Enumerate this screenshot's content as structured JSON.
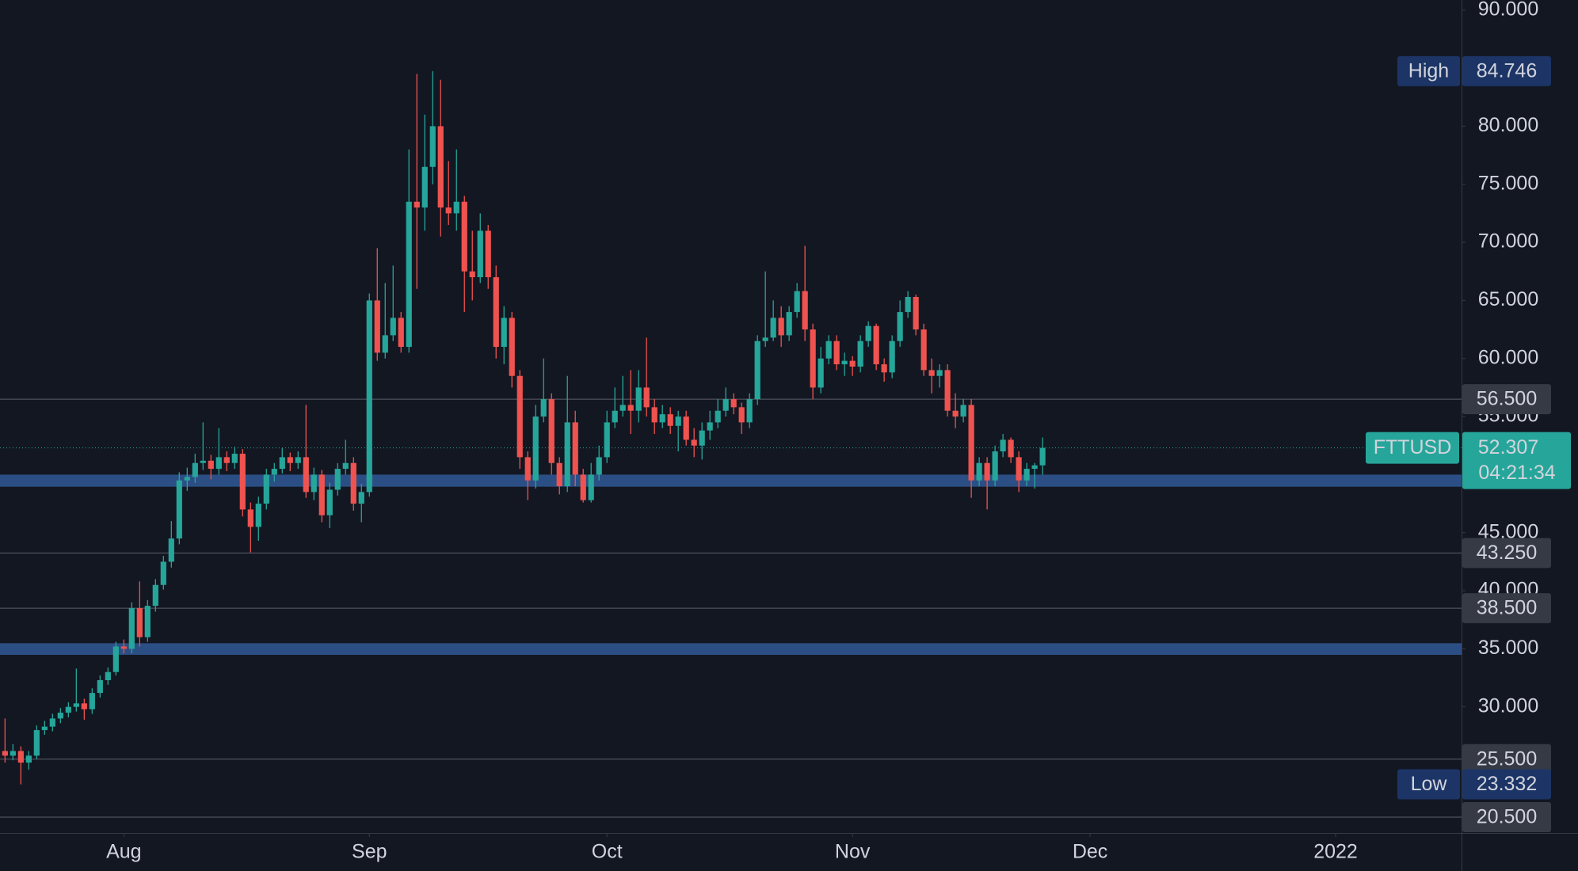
{
  "chart_data": {
    "type": "candlestick",
    "symbol": "FTTUSD",
    "countdown": "04:21:34",
    "up_color": "#26a69a",
    "down_color": "#ef5350",
    "zone_color": "#2b4f85",
    "level_color": "#5d606b",
    "open": [
      26.2,
      25.8,
      26.2,
      25.2,
      25.8,
      28.0,
      28.3,
      29.0,
      29.5,
      30.0,
      30.3,
      29.8,
      31.2,
      32.3,
      33.0,
      35.2,
      35.0,
      38.5,
      36.0,
      38.7,
      40.5,
      42.5,
      44.5,
      49.5,
      49.8,
      51.0,
      51.2,
      50.5,
      51.5,
      51.0,
      51.8,
      47.0,
      45.5,
      47.5,
      50.0,
      50.5,
      51.5,
      51.0,
      51.5,
      48.5,
      50.0,
      46.5,
      48.7,
      50.5,
      51.0,
      47.5,
      48.5,
      65.0,
      60.5,
      62.0,
      63.5,
      61.0,
      73.5,
      73.0,
      76.5,
      80.0,
      73.0,
      72.5,
      73.5,
      67.5,
      67.0,
      71.0,
      67.0,
      61.0,
      63.5,
      58.5,
      51.5,
      49.5,
      55.0,
      56.5,
      51.0,
      49.0,
      54.5,
      50.0,
      47.8,
      50.0,
      51.5,
      54.5,
      55.5,
      56.0,
      55.5,
      57.5,
      55.8,
      54.5,
      55.2,
      54.2,
      55.0,
      53.0,
      52.5,
      53.8,
      54.5,
      55.5,
      56.5,
      55.8,
      54.5,
      56.5,
      61.5,
      61.8,
      63.5,
      62.0,
      64.0,
      65.8,
      62.5,
      57.5,
      60.0,
      61.5,
      59.5,
      59.8,
      59.3,
      61.5,
      62.8,
      59.5,
      58.8,
      61.5,
      64.0,
      65.3,
      62.5,
      59.0,
      58.5,
      59.0,
      55.5,
      55.0,
      56.0,
      49.5,
      51.0,
      49.5,
      52.0,
      53.0,
      51.5,
      49.5,
      50.5,
      50.8
    ],
    "high": [
      29.0,
      26.8,
      26.6,
      26.2,
      28.4,
      28.8,
      29.4,
      29.9,
      30.4,
      33.3,
      30.7,
      31.6,
      32.7,
      33.4,
      35.6,
      35.8,
      39.0,
      40.8,
      39.2,
      41.0,
      43.0,
      46.0,
      50.2,
      50.6,
      51.8,
      54.5,
      51.7,
      54.0,
      52.0,
      52.4,
      52.2,
      47.6,
      48.1,
      50.5,
      51.0,
      52.3,
      51.9,
      52.0,
      56.0,
      50.6,
      50.4,
      49.3,
      51.0,
      53.0,
      51.5,
      49.2,
      65.6,
      69.5,
      66.5,
      68.0,
      64.0,
      78.0,
      84.5,
      81.0,
      84.746,
      84.0,
      77.0,
      78.0,
      74.0,
      71.0,
      72.5,
      71.5,
      68.0,
      64.5,
      64.0,
      59.0,
      52.0,
      56.0,
      60.0,
      57.0,
      51.5,
      58.5,
      55.5,
      50.5,
      51.0,
      52.5,
      55.5,
      57.5,
      58.5,
      59.0,
      59.0,
      61.8,
      56.5,
      56.0,
      55.8,
      55.5,
      55.5,
      54.0,
      54.5,
      55.5,
      56.5,
      57.5,
      57.0,
      56.2,
      57.0,
      62.0,
      67.5,
      65.0,
      64.5,
      64.5,
      66.5,
      69.7,
      63.0,
      61.0,
      62.0,
      62.0,
      60.5,
      60.2,
      62.0,
      63.2,
      63.0,
      60.0,
      62.0,
      65.0,
      65.8,
      65.5,
      63.0,
      60.0,
      59.5,
      59.5,
      57.0,
      56.5,
      56.5,
      51.5,
      51.5,
      52.5,
      53.5,
      53.2,
      52.0,
      51.0,
      51.0,
      53.2
    ],
    "low": [
      25.2,
      25.4,
      23.332,
      24.6,
      25.5,
      27.6,
      27.9,
      28.6,
      29.1,
      29.6,
      28.9,
      29.4,
      30.8,
      31.9,
      32.7,
      34.6,
      34.6,
      35.2,
      35.6,
      38.2,
      40.1,
      42.0,
      44.0,
      48.6,
      49.3,
      50.4,
      49.6,
      50.0,
      50.3,
      50.5,
      46.4,
      43.3,
      44.3,
      47.0,
      49.4,
      50.1,
      50.3,
      50.5,
      48.0,
      47.8,
      45.9,
      45.4,
      48.2,
      50.0,
      46.9,
      45.9,
      48.1,
      59.8,
      60.0,
      61.5,
      60.5,
      60.5,
      66.0,
      71.0,
      75.0,
      70.5,
      71.5,
      71.0,
      64.0,
      65.0,
      66.5,
      66.0,
      60.0,
      59.5,
      57.5,
      50.5,
      47.8,
      48.8,
      54.5,
      50.0,
      48.3,
      48.5,
      49.0,
      47.6,
      47.6,
      49.5,
      51.0,
      54.0,
      55.0,
      53.5,
      54.5,
      55.0,
      53.5,
      54.0,
      53.5,
      52.0,
      52.5,
      51.5,
      51.3,
      53.0,
      54.0,
      55.0,
      55.2,
      53.5,
      54.0,
      56.0,
      61.0,
      61.5,
      61.0,
      61.5,
      63.5,
      61.5,
      56.5,
      57.0,
      59.5,
      59.0,
      58.5,
      58.5,
      58.8,
      61.0,
      59.0,
      58.0,
      58.3,
      61.0,
      63.5,
      62.0,
      58.5,
      57.0,
      57.5,
      55.0,
      54.0,
      54.5,
      48.0,
      49.0,
      47.0,
      49.0,
      51.5,
      51.0,
      48.5,
      49.0,
      48.8,
      50.0
    ],
    "close": [
      25.8,
      26.2,
      25.2,
      25.8,
      28.0,
      28.3,
      29.0,
      29.5,
      30.0,
      30.3,
      29.8,
      31.2,
      32.3,
      33.0,
      35.2,
      35.0,
      38.5,
      36.0,
      38.7,
      40.5,
      42.5,
      44.5,
      49.5,
      49.8,
      51.0,
      51.2,
      50.5,
      51.5,
      51.0,
      51.8,
      47.0,
      45.5,
      47.5,
      50.0,
      50.5,
      51.5,
      51.0,
      51.5,
      48.5,
      50.0,
      46.5,
      48.7,
      50.5,
      51.0,
      47.5,
      48.5,
      65.0,
      60.5,
      62.0,
      63.5,
      61.0,
      73.5,
      73.0,
      76.5,
      80.0,
      73.0,
      72.5,
      73.5,
      67.5,
      67.0,
      71.0,
      67.0,
      61.0,
      63.5,
      58.5,
      51.5,
      49.5,
      55.0,
      56.5,
      51.0,
      49.0,
      54.5,
      50.0,
      47.8,
      50.0,
      51.5,
      54.5,
      55.5,
      56.0,
      55.5,
      57.5,
      55.8,
      54.5,
      55.2,
      54.2,
      55.0,
      53.0,
      52.5,
      53.8,
      54.5,
      55.5,
      56.5,
      55.8,
      54.5,
      56.5,
      61.5,
      61.8,
      63.5,
      62.0,
      64.0,
      65.8,
      62.5,
      57.5,
      60.0,
      61.5,
      59.5,
      59.8,
      59.3,
      61.5,
      62.8,
      59.5,
      58.8,
      61.5,
      64.0,
      65.3,
      62.5,
      59.0,
      58.5,
      59.0,
      55.5,
      55.0,
      56.0,
      49.5,
      51.0,
      49.5,
      52.0,
      53.0,
      51.5,
      49.5,
      50.5,
      50.8,
      52.307
    ],
    "xlim": [
      -0.635,
      183.9
    ],
    "xticks": [
      {
        "value": 15,
        "label": "Aug"
      },
      {
        "value": 46,
        "label": "Sep"
      },
      {
        "value": 76,
        "label": "Oct"
      },
      {
        "value": 107,
        "label": "Nov"
      },
      {
        "value": 137,
        "label": "Dec"
      },
      {
        "value": 168,
        "label": "2022"
      }
    ],
    "ylim": [
      19.14,
      90.87
    ],
    "yticks": [
      {
        "value": 90,
        "label": "90.000"
      },
      {
        "value": 80,
        "label": "80.000"
      },
      {
        "value": 75,
        "label": "75.000"
      },
      {
        "value": 70,
        "label": "70.000"
      },
      {
        "value": 65,
        "label": "65.000"
      },
      {
        "value": 60,
        "label": "60.000"
      },
      {
        "value": 55,
        "label": "55.000"
      },
      {
        "value": 45,
        "label": "45.000"
      },
      {
        "value": 40,
        "label": "40.000"
      },
      {
        "value": 35,
        "label": "35.000"
      },
      {
        "value": 30,
        "label": "30.000"
      }
    ],
    "zones": [
      {
        "from": 48.96,
        "to": 50.0
      },
      {
        "from": 34.48,
        "to": 35.48
      }
    ],
    "levels": [
      {
        "value": 56.5,
        "label": "56.500"
      },
      {
        "value": 43.25,
        "label": "43.250"
      },
      {
        "value": 38.5,
        "label": "38.500"
      },
      {
        "value": 25.5,
        "label": "25.500"
      },
      {
        "value": 20.5,
        "label": "20.500"
      }
    ],
    "high_marker": {
      "label": "High",
      "value": 84.746,
      "value_label": "84.746"
    },
    "low_marker": {
      "label": "Low",
      "value": 23.332,
      "value_label": "23.332"
    },
    "last": {
      "value": 52.307,
      "value_label": "52.307"
    }
  }
}
